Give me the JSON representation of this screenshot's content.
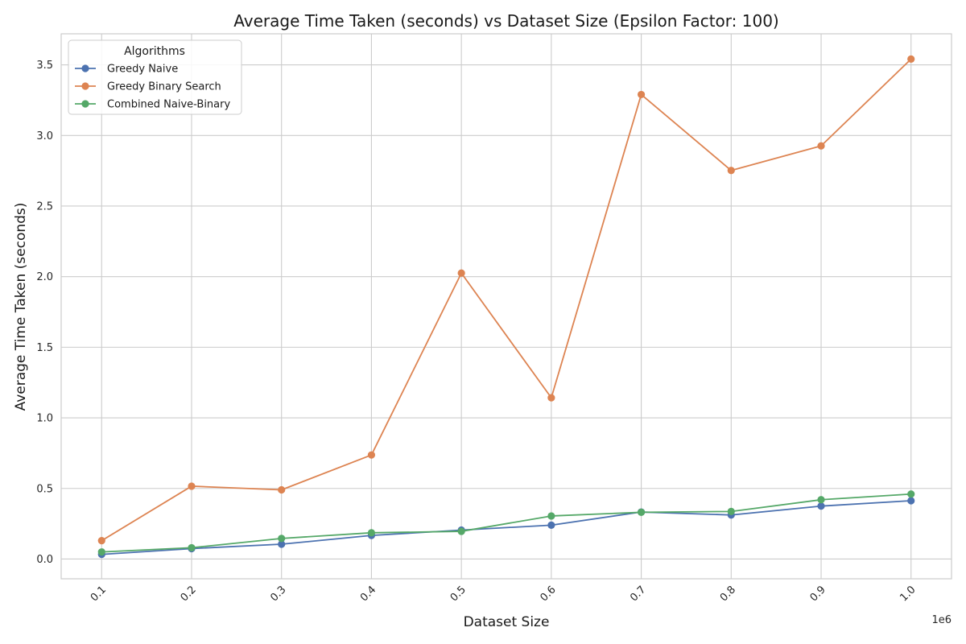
{
  "chart_data": {
    "type": "line",
    "title": "Average Time Taken (seconds) vs Dataset Size (Epsilon Factor: 100)",
    "xlabel": "Dataset Size",
    "ylabel": "Average Time Taken (seconds)",
    "x_offset_label": "1e6",
    "x": [
      0.1,
      0.2,
      0.3,
      0.4,
      0.5,
      0.6,
      0.7,
      0.8,
      0.9,
      1.0
    ],
    "x_tick_labels": [
      "0.1",
      "0.2",
      "0.3",
      "0.4",
      "0.5",
      "0.6",
      "0.7",
      "0.8",
      "0.9",
      "1.0"
    ],
    "xlim": [
      0.055,
      1.045
    ],
    "y_ticks": [
      0.0,
      0.5,
      1.0,
      1.5,
      2.0,
      2.5,
      3.0,
      3.5
    ],
    "y_tick_labels": [
      "0.0",
      "0.5",
      "1.0",
      "1.5",
      "2.0",
      "2.5",
      "3.0",
      "3.5"
    ],
    "ylim": [
      -0.14,
      3.72
    ],
    "grid": true,
    "legend_title": "Algorithms",
    "legend_position": "top-left",
    "series": [
      {
        "name": "Greedy Naive",
        "color": "#4c72b0",
        "values": [
          0.033,
          0.074,
          0.105,
          0.167,
          0.205,
          0.24,
          0.333,
          0.312,
          0.375,
          0.413
        ]
      },
      {
        "name": "Greedy Binary Search",
        "color": "#dd8452",
        "values": [
          0.13,
          0.516,
          0.49,
          0.737,
          2.025,
          1.142,
          3.29,
          2.752,
          2.926,
          3.541
        ]
      },
      {
        "name": "Combined Naive-Binary",
        "color": "#55a868",
        "values": [
          0.05,
          0.08,
          0.146,
          0.186,
          0.196,
          0.305,
          0.331,
          0.337,
          0.42,
          0.46
        ]
      }
    ]
  }
}
